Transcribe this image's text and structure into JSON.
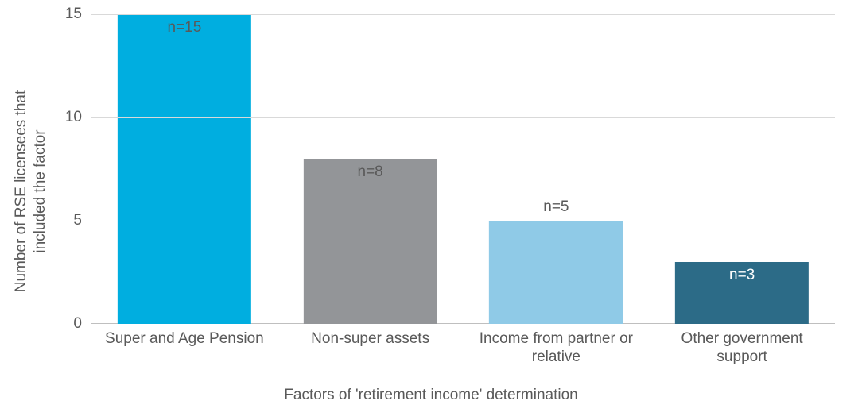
{
  "chart": {
    "type": "bar",
    "background_color": "#ffffff",
    "grid_color": "#d9d9d9",
    "baseline_color": "#bfbfbf",
    "axis_text_color": "#595959",
    "axis_fontsize_pt": 14,
    "title_fontsize_pt": 14,
    "y_axis": {
      "title": "Number of RSE licensees that\nincluded the factor",
      "min": 0,
      "max": 15,
      "ticks": [
        0,
        5,
        10,
        15
      ]
    },
    "x_axis": {
      "title": "Factors of 'retirement income' determination"
    },
    "bar_width_ratio": 0.72,
    "categories": [
      {
        "label": "Super and Age Pension",
        "value": 15,
        "value_label": "n=15",
        "bar_color": "#00aee0",
        "label_color": "#595959",
        "label_offset_mode": "inside_top"
      },
      {
        "label": "Non-super assets",
        "value": 8,
        "value_label": "n=8",
        "bar_color": "#939598",
        "label_color": "#595959",
        "label_offset_mode": "inside_top"
      },
      {
        "label": "Income from partner or\nrelative",
        "value": 5,
        "value_label": "n=5",
        "bar_color": "#8fcae7",
        "label_color": "#595959",
        "label_offset_mode": "above"
      },
      {
        "label": "Other government\nsupport",
        "value": 3,
        "value_label": "n=3",
        "bar_color": "#2c6b87",
        "label_color": "#ffffff",
        "label_offset_mode": "inside_top"
      }
    ]
  }
}
